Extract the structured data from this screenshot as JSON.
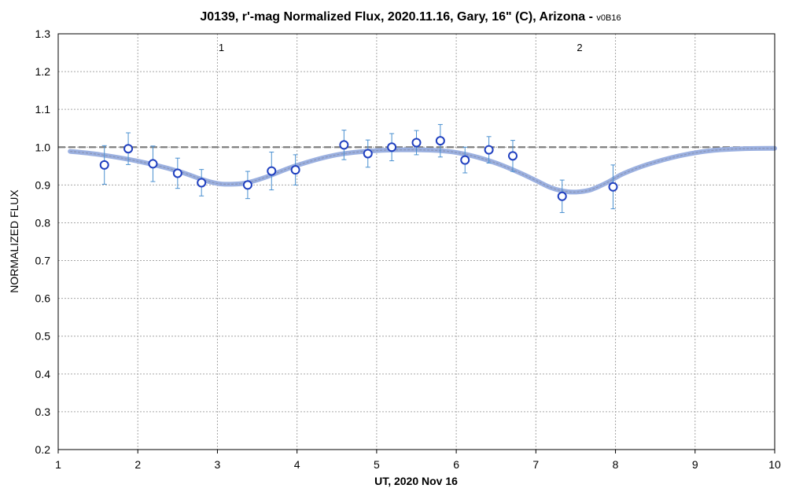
{
  "chart_data": {
    "type": "scatter",
    "title": "J0139, r'-mag Normalized Flux, 2020.11.16, Gary, 16\" (C), Arizona - ",
    "title_suffix": "v0B16",
    "xlabel": "UT, 2020 Nov 16",
    "ylabel": "NORMALIZED FLUX",
    "xlim": [
      1,
      10
    ],
    "ylim": [
      0.2,
      1.3
    ],
    "x_ticks": [
      "1",
      "2",
      "3",
      "4",
      "5",
      "6",
      "7",
      "8",
      "9",
      "10"
    ],
    "y_ticks": [
      "0.2",
      "0.3",
      "0.4",
      "0.5",
      "0.6",
      "0.7",
      "0.8",
      "0.9",
      "1.0",
      "1.1",
      "1.2",
      "1.3"
    ],
    "grid": true,
    "reference_line": {
      "y": 1.0,
      "style": "dashed",
      "color": "#7f7f7f"
    },
    "annotations": [
      {
        "text": "1",
        "x": 3.05,
        "y": 1.265
      },
      {
        "text": "2",
        "x": 7.55,
        "y": 1.265
      }
    ],
    "series": [
      {
        "marker": "circle",
        "color": "#1f3fbf",
        "error_bar_color": "#4a90d0",
        "points": [
          {
            "x": 1.58,
            "y": 0.953,
            "err": 0.051
          },
          {
            "x": 1.88,
            "y": 0.996,
            "err": 0.042
          },
          {
            "x": 2.19,
            "y": 0.956,
            "err": 0.047
          },
          {
            "x": 2.5,
            "y": 0.931,
            "err": 0.04
          },
          {
            "x": 2.8,
            "y": 0.906,
            "err": 0.035
          },
          {
            "x": 3.38,
            "y": 0.9,
            "err": 0.036
          },
          {
            "x": 3.68,
            "y": 0.937,
            "err": 0.05
          },
          {
            "x": 3.98,
            "y": 0.94,
            "err": 0.04
          },
          {
            "x": 4.59,
            "y": 1.006,
            "err": 0.039
          },
          {
            "x": 4.89,
            "y": 0.983,
            "err": 0.036
          },
          {
            "x": 5.19,
            "y": 1.0,
            "err": 0.036
          },
          {
            "x": 5.5,
            "y": 1.012,
            "err": 0.032
          },
          {
            "x": 5.8,
            "y": 1.017,
            "err": 0.043
          },
          {
            "x": 6.11,
            "y": 0.966,
            "err": 0.034
          },
          {
            "x": 6.41,
            "y": 0.993,
            "err": 0.035
          },
          {
            "x": 6.71,
            "y": 0.977,
            "err": 0.041
          },
          {
            "x": 7.33,
            "y": 0.87,
            "err": 0.043
          },
          {
            "x": 7.97,
            "y": 0.895,
            "err": 0.058
          }
        ]
      }
    ],
    "model": {
      "color": "#9bb0e0",
      "core_color": "#8a96b8",
      "x": [
        1.15,
        1.5,
        2.0,
        2.5,
        2.8,
        3.0,
        3.15,
        3.35,
        3.6,
        4.0,
        4.5,
        5.0,
        5.5,
        5.9,
        6.2,
        6.5,
        6.8,
        7.0,
        7.2,
        7.4,
        7.55,
        7.7,
        7.9,
        8.1,
        8.4,
        8.8,
        9.2,
        9.6,
        10.0
      ],
      "y": [
        0.989,
        0.981,
        0.963,
        0.937,
        0.915,
        0.904,
        0.902,
        0.905,
        0.92,
        0.952,
        0.98,
        0.991,
        0.993,
        0.989,
        0.977,
        0.958,
        0.932,
        0.912,
        0.892,
        0.882,
        0.882,
        0.888,
        0.907,
        0.93,
        0.954,
        0.977,
        0.991,
        0.996,
        0.997
      ]
    }
  }
}
